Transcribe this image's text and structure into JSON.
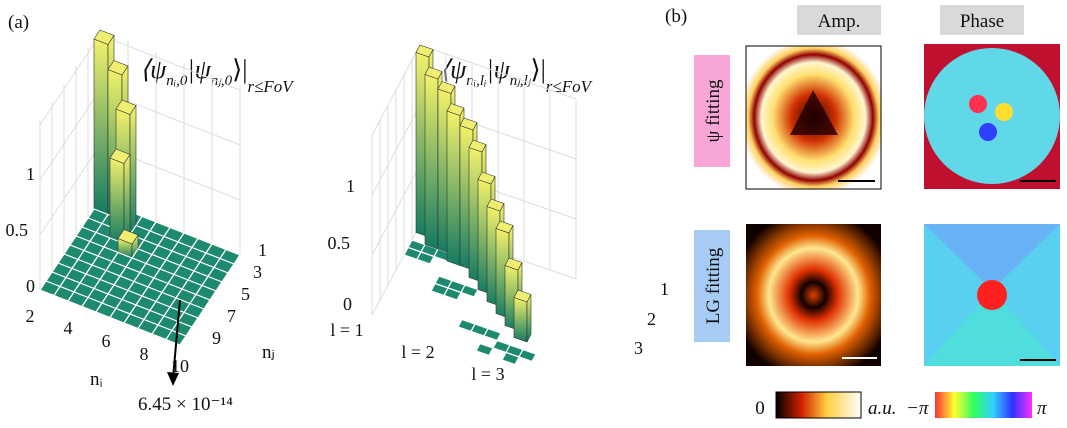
{
  "panel_a": {
    "label": "(a)",
    "left": {
      "formula": {
        "open": "⟨ψ",
        "sub1": "nᵢ,0",
        "mid": "|ψ",
        "sub2": "nⱼ,0",
        "close": "⟩|",
        "cond": "r≤FoV"
      },
      "z_ticks": [
        "1",
        "0.5",
        "0"
      ],
      "x_ticks": [
        "2",
        "4",
        "6",
        "8",
        "10"
      ],
      "y_ticks": [
        "1",
        "3",
        "5",
        "7",
        "9"
      ],
      "x_label": "nᵢ",
      "y_label": "nⱼ",
      "annotation": "6.45 × 10⁻¹⁴"
    },
    "right": {
      "formula": {
        "open": "⟨ψ",
        "sub1": "nᵢ,lᵢ",
        "mid": "|ψ",
        "sub2": "nⱼ,lⱼ",
        "close": "⟩|",
        "cond": "r≤FoV"
      },
      "z_ticks": [
        "1",
        "0.5",
        "0"
      ],
      "x_ticks": [
        "l = 1",
        "l = 2",
        "l = 3"
      ],
      "y_ticks": [
        "1",
        "2",
        "3"
      ]
    }
  },
  "panel_b": {
    "label": "(b)",
    "columns": [
      "Amp.",
      "Phase"
    ],
    "rows": [
      "ψ fitting",
      "LG fitting"
    ],
    "colorbar": {
      "amp_min": "0",
      "amp_unit": "a.u.",
      "phase_min": "−π",
      "phase_max": "π"
    }
  }
}
